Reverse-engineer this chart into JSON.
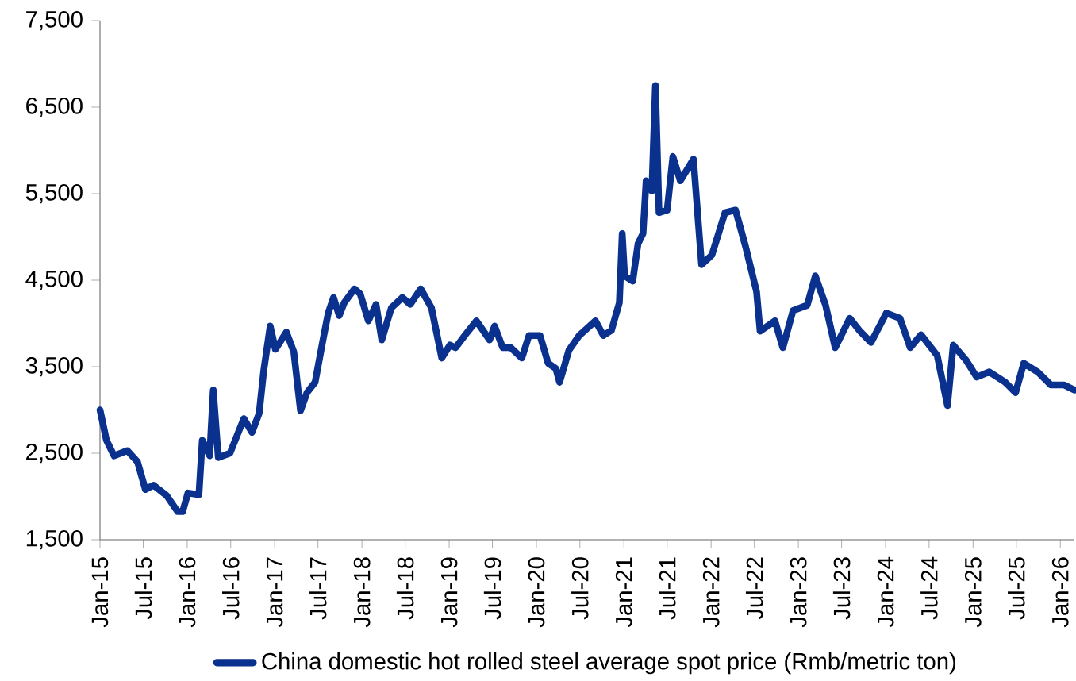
{
  "chart_data": {
    "type": "line",
    "x": [
      "2015-01-01",
      "2015-01-28",
      "2015-03-01",
      "2015-04-25",
      "2015-06-07",
      "2015-07-10",
      "2015-08-13",
      "2015-10-07",
      "2015-11-22",
      "2015-12-13",
      "2016-01-04",
      "2016-02-19",
      "2016-03-04",
      "2016-04-04",
      "2016-04-19",
      "2016-05-10",
      "2016-06-28",
      "2016-08-25",
      "2016-09-28",
      "2016-10-28",
      "2016-11-16",
      "2016-12-13",
      "2017-01-04",
      "2017-02-19",
      "2017-03-22",
      "2017-04-19",
      "2017-05-16",
      "2017-06-19",
      "2017-07-22",
      "2017-08-13",
      "2017-09-04",
      "2017-09-28",
      "2017-10-19",
      "2017-12-01",
      "2017-12-25",
      "2018-01-28",
      "2018-03-01",
      "2018-03-25",
      "2018-05-04",
      "2018-06-19",
      "2018-07-22",
      "2018-09-04",
      "2018-10-19",
      "2018-12-01",
      "2019-01-04",
      "2019-01-28",
      "2019-03-10",
      "2019-04-25",
      "2019-06-19",
      "2019-07-10",
      "2019-08-13",
      "2019-09-16",
      "2019-11-01",
      "2019-12-01",
      "2020-01-16",
      "2020-02-19",
      "2020-03-22",
      "2020-04-07",
      "2020-05-16",
      "2020-06-28",
      "2020-09-04",
      "2020-10-07",
      "2020-11-10",
      "2020-12-13",
      "2020-12-25",
      "2021-01-04",
      "2021-02-07",
      "2021-03-01",
      "2021-03-22",
      "2021-04-04",
      "2021-04-28",
      "2021-05-13",
      "2021-05-28",
      "2021-07-01",
      "2021-07-25",
      "2021-08-25",
      "2021-10-19",
      "2021-11-22",
      "2022-01-04",
      "2022-02-28",
      "2022-04-13",
      "2022-05-25",
      "2022-07-10",
      "2022-07-25",
      "2022-09-25",
      "2022-10-28",
      "2022-12-10",
      "2023-02-07",
      "2023-03-13",
      "2023-04-25",
      "2023-06-04",
      "2023-08-04",
      "2023-09-16",
      "2023-11-01",
      "2024-01-04",
      "2024-03-01",
      "2024-04-13",
      "2024-05-28",
      "2024-08-04",
      "2024-09-16",
      "2024-10-10",
      "2024-12-04",
      "2025-01-16",
      "2025-03-10",
      "2025-05-16",
      "2025-06-28",
      "2025-08-01",
      "2025-09-28",
      "2025-11-22",
      "2026-01-16",
      "2026-03-01"
    ],
    "series": [
      {
        "name": "China domestic hot rolled steel average spot price (Rmb/metric ton)",
        "color": "#0b318f",
        "values": [
          3000,
          2650,
          2470,
          2530,
          2400,
          2080,
          2130,
          2010,
          1825,
          1825,
          2040,
          2020,
          2650,
          2470,
          3230,
          2450,
          2500,
          2900,
          2740,
          2960,
          3450,
          3970,
          3700,
          3900,
          3670,
          2990,
          3200,
          3320,
          3810,
          4120,
          4300,
          4090,
          4240,
          4400,
          4340,
          4030,
          4220,
          3810,
          4180,
          4300,
          4220,
          4400,
          4180,
          3600,
          3750,
          3720,
          3870,
          4030,
          3810,
          3970,
          3720,
          3720,
          3600,
          3860,
          3860,
          3540,
          3480,
          3320,
          3690,
          3860,
          4030,
          3860,
          3920,
          4240,
          5040,
          4550,
          4490,
          4920,
          5040,
          5650,
          5530,
          6750,
          5280,
          5310,
          5930,
          5650,
          5900,
          4680,
          4790,
          5280,
          5310,
          4890,
          4370,
          3910,
          4030,
          3720,
          4150,
          4210,
          4550,
          4210,
          3720,
          4060,
          3910,
          3780,
          4120,
          4060,
          3720,
          3870,
          3630,
          3050,
          3750,
          3570,
          3380,
          3440,
          3320,
          3200,
          3540,
          3440,
          3290,
          3290,
          3230
        ]
      }
    ],
    "xlim": [
      "2015-01-01",
      "2026-03-01"
    ],
    "xticks": [
      {
        "value": "2015-01",
        "label": "Jan-15"
      },
      {
        "value": "2015-07",
        "label": "Jul-15"
      },
      {
        "value": "2016-01",
        "label": "Jan-16"
      },
      {
        "value": "2016-07",
        "label": "Jul-16"
      },
      {
        "value": "2017-01",
        "label": "Jan-17"
      },
      {
        "value": "2017-07",
        "label": "Jul-17"
      },
      {
        "value": "2018-01",
        "label": "Jan-18"
      },
      {
        "value": "2018-07",
        "label": "Jul-18"
      },
      {
        "value": "2019-01",
        "label": "Jan-19"
      },
      {
        "value": "2019-07",
        "label": "Jul-19"
      },
      {
        "value": "2020-01",
        "label": "Jan-20"
      },
      {
        "value": "2020-07",
        "label": "Jul-20"
      },
      {
        "value": "2021-01",
        "label": "Jan-21"
      },
      {
        "value": "2021-07",
        "label": "Jul-21"
      },
      {
        "value": "2022-01",
        "label": "Jan-22"
      },
      {
        "value": "2022-07",
        "label": "Jul-22"
      },
      {
        "value": "2023-01",
        "label": "Jan-23"
      },
      {
        "value": "2023-07",
        "label": "Jul-23"
      },
      {
        "value": "2024-01",
        "label": "Jan-24"
      },
      {
        "value": "2024-07",
        "label": "Jul-24"
      },
      {
        "value": "2025-01",
        "label": "Jan-25"
      },
      {
        "value": "2025-07",
        "label": "Jul-25"
      },
      {
        "value": "2026-01",
        "label": "Jan-26"
      }
    ],
    "ylim": [
      1500,
      7500
    ],
    "yticks": [
      {
        "value": 1500,
        "label": "1,500"
      },
      {
        "value": 2500,
        "label": "2,500"
      },
      {
        "value": 3500,
        "label": "3,500"
      },
      {
        "value": 4500,
        "label": "4,500"
      },
      {
        "value": 5500,
        "label": "5,500"
      },
      {
        "value": 6500,
        "label": "6,500"
      },
      {
        "value": 7500,
        "label": "7,500"
      }
    ],
    "legend": "bottom",
    "grid": false,
    "marker": "none",
    "line_style": "solid"
  }
}
